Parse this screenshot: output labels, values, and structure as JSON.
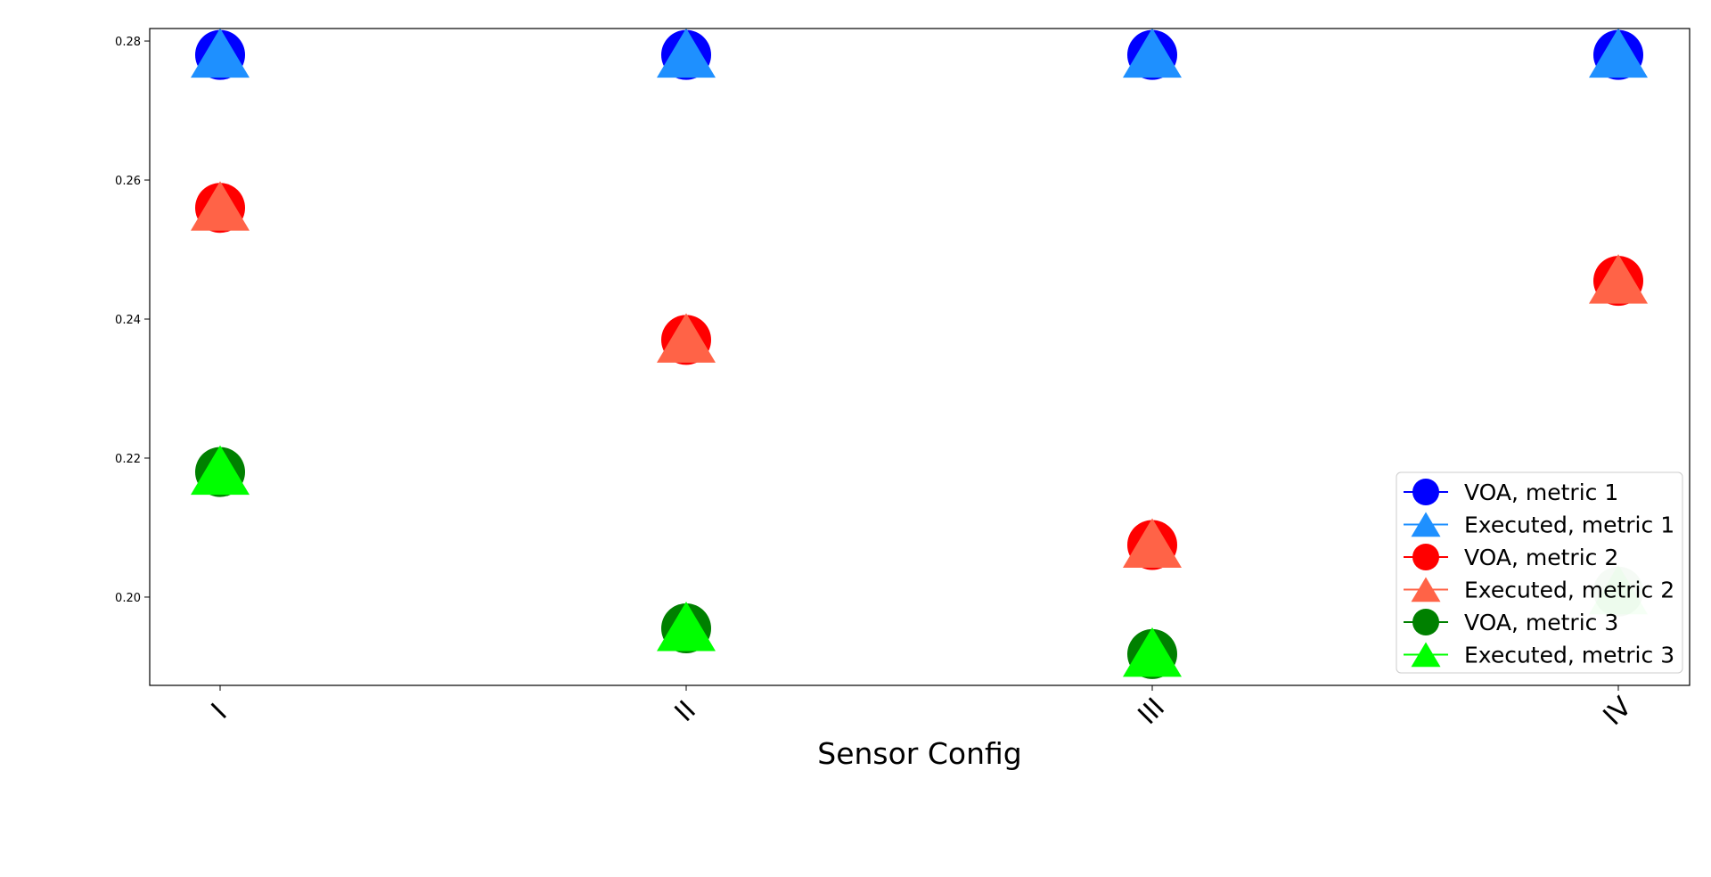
{
  "chart_data": {
    "type": "scatter",
    "title": "",
    "xlabel": "Sensor Config",
    "ylabel": "",
    "categories": [
      "I",
      "II",
      "III",
      "IV"
    ],
    "ylim": [
      0.1873,
      0.2818
    ],
    "yticks": [
      "0.20",
      "0.22",
      "0.24",
      "0.26",
      "0.28"
    ],
    "grid": false,
    "legend_position": "lower right",
    "series": [
      {
        "name": "VOA, metric 1",
        "marker": "circle",
        "color": "#0000ff",
        "opacity": 1,
        "values": [
          0.278,
          0.278,
          0.278,
          0.278
        ]
      },
      {
        "name": "Executed, metric 1",
        "marker": "triangle",
        "color": "#1e90ff",
        "opacity": 1,
        "values": [
          0.278,
          0.278,
          0.278,
          0.278
        ]
      },
      {
        "name": "VOA, metric 2",
        "marker": "circle",
        "color": "#ff0000",
        "opacity": 1,
        "values": [
          0.256,
          0.237,
          0.2075,
          0.2455
        ]
      },
      {
        "name": "Executed, metric 2",
        "marker": "triangle",
        "color": "#ff6347",
        "opacity": 1,
        "values": [
          0.256,
          0.237,
          0.2075,
          0.2455
        ]
      },
      {
        "name": "VOA, metric 3",
        "marker": "circle",
        "color": "#008000",
        "opacity": 1,
        "values": [
          0.218,
          0.1955,
          0.1918,
          0.2008
        ],
        "point_opacity": [
          1,
          1,
          1,
          0.2
        ]
      },
      {
        "name": "Executed, metric 3",
        "marker": "triangle",
        "color": "#00ff00",
        "opacity": 1,
        "values": [
          0.218,
          0.1955,
          0.1918,
          0.2008
        ],
        "point_opacity": [
          1,
          1,
          1,
          0.2
        ]
      }
    ]
  }
}
